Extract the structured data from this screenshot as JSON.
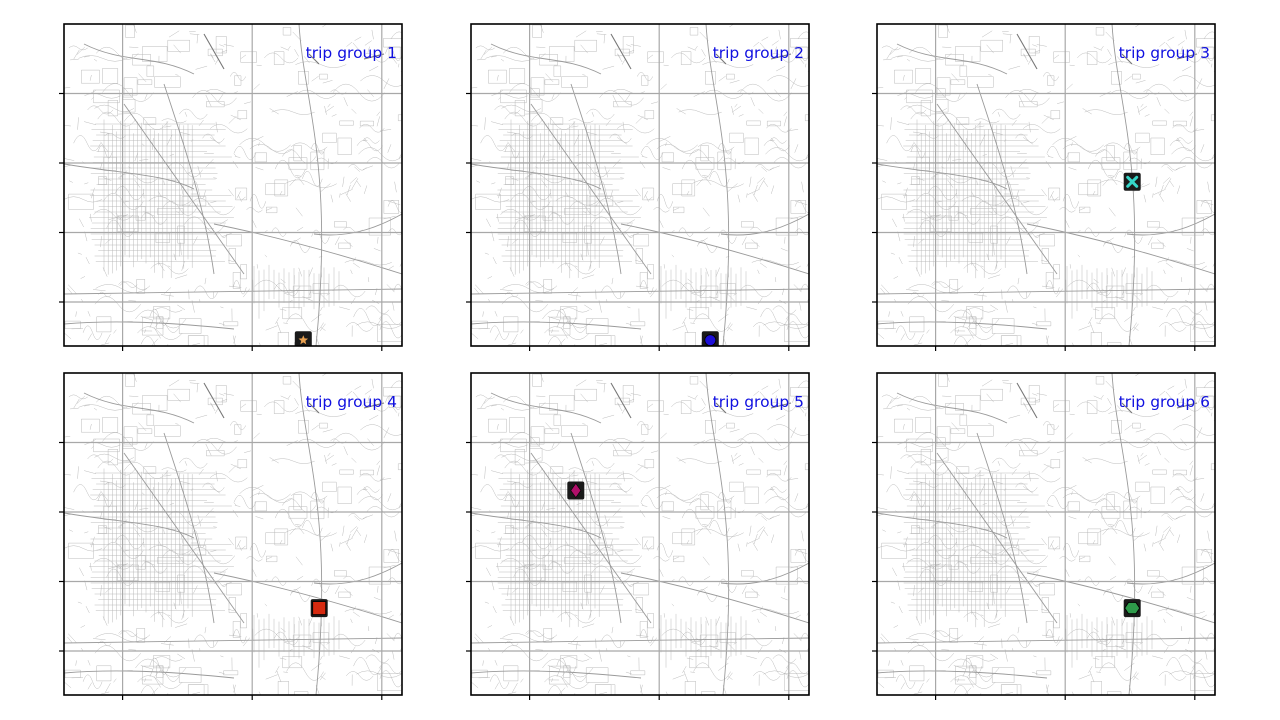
{
  "figure": {
    "panels": [
      {
        "label": "trip group 1",
        "marker": {
          "shape": "star",
          "fill": "#e8a050",
          "position": [
            0.708,
            0.982
          ]
        }
      },
      {
        "label": "trip group 2",
        "marker": {
          "shape": "circle",
          "fill": "#1d0fd6",
          "position": [
            0.708,
            0.982
          ]
        }
      },
      {
        "label": "trip group 3",
        "marker": {
          "shape": "x",
          "fill": "#36d6c8",
          "position": [
            0.755,
            0.49
          ]
        }
      },
      {
        "label": "trip group 4",
        "marker": {
          "shape": "square",
          "fill": "#d62a10",
          "position": [
            0.755,
            0.73
          ]
        }
      },
      {
        "label": "trip group 5",
        "marker": {
          "shape": "diamond",
          "fill": "#b0106a",
          "position": [
            0.31,
            0.365
          ]
        }
      },
      {
        "label": "trip group 6",
        "marker": {
          "shape": "hexagon",
          "fill": "#2e9a4a",
          "position": [
            0.755,
            0.73
          ]
        }
      }
    ],
    "colors": {
      "label": "#1010e0",
      "marker_bg": "#1a1a1a",
      "grid": "#a8a8a8",
      "streets": "#b4b4b4",
      "frame": "#000000"
    }
  }
}
